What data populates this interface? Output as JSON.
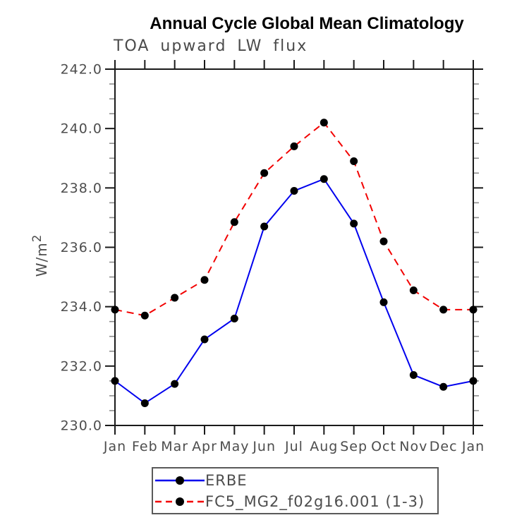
{
  "chart_data": {
    "type": "line",
    "title": "Annual Cycle Global Mean Climatology",
    "subtitle": "TOA upward LW flux",
    "ylabel": "W/m",
    "ylabel_sup": "2",
    "categories": [
      "Jan",
      "Feb",
      "Mar",
      "Apr",
      "May",
      "Jun",
      "Jul",
      "Aug",
      "Sep",
      "Oct",
      "Nov",
      "Dec",
      "Jan"
    ],
    "series": [
      {
        "name": "ERBE",
        "color": "#0000ee",
        "style": "solid",
        "marker": "circle",
        "marker_color": "#000000",
        "values": [
          231.5,
          230.75,
          231.4,
          232.9,
          233.6,
          236.7,
          237.9,
          238.3,
          236.8,
          234.15,
          231.7,
          231.3,
          231.5
        ]
      },
      {
        "name": "FC5_MG2_f02g16.001 (1-3)",
        "color": "#f20000",
        "style": "dashed",
        "marker": "circle",
        "marker_color": "#000000",
        "values": [
          233.9,
          233.7,
          234.3,
          234.9,
          236.85,
          238.5,
          239.4,
          240.2,
          238.9,
          236.2,
          234.55,
          233.9,
          233.9
        ]
      }
    ],
    "ylim": [
      230.0,
      242.0
    ],
    "ytick_major": 2.0,
    "ytick_minor": 0.5,
    "ytick_format_decimals": 1,
    "grid": false,
    "legend_position": "bottom"
  }
}
